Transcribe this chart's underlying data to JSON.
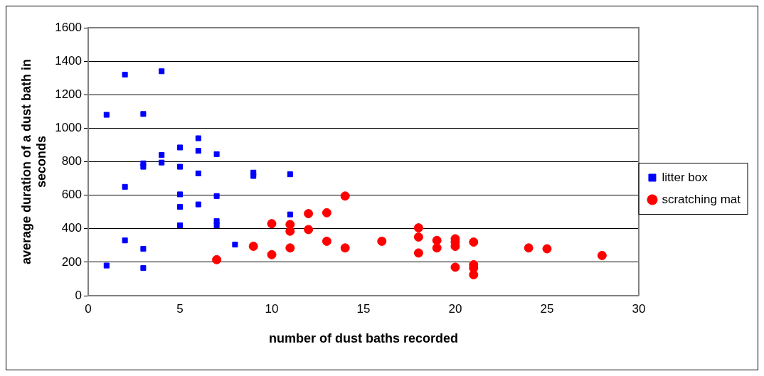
{
  "chart_data": {
    "type": "scatter",
    "xlabel": "number of dust baths recorded",
    "ylabel": "average duration of a dust bath in seconds",
    "xlim": [
      0,
      30
    ],
    "xticks": [
      0,
      5,
      10,
      15,
      20,
      25,
      30
    ],
    "ylim": [
      0,
      1600
    ],
    "yticks": [
      0,
      200,
      400,
      600,
      800,
      1000,
      1200,
      1400,
      1600
    ],
    "grid": "y",
    "legend": "right",
    "series": [
      {
        "name": "litter box",
        "color": "#0000ff",
        "marker": "square",
        "x": [
          1,
          1,
          2,
          2,
          2,
          3,
          3,
          3,
          3,
          3,
          4,
          4,
          4,
          5,
          5,
          5,
          5,
          5,
          6,
          6,
          6,
          6,
          7,
          7,
          7,
          7,
          8,
          9,
          9,
          11,
          11
        ],
        "values": [
          1080,
          180,
          1320,
          650,
          330,
          1085,
          790,
          770,
          280,
          165,
          1340,
          840,
          795,
          885,
          770,
          605,
          530,
          420,
          940,
          865,
          730,
          545,
          845,
          595,
          445,
          420,
          305,
          735,
          715,
          725,
          485
        ]
      },
      {
        "name": "scratching mat",
        "color": "#ff0000",
        "marker": "circle",
        "x": [
          7,
          9,
          10,
          10,
          11,
          11,
          11,
          12,
          12,
          13,
          13,
          14,
          14,
          16,
          18,
          18,
          18,
          19,
          19,
          20,
          20,
          20,
          20,
          21,
          21,
          21,
          21,
          24,
          25,
          28
        ],
        "values": [
          215,
          295,
          430,
          245,
          425,
          385,
          285,
          490,
          395,
          495,
          325,
          595,
          285,
          325,
          405,
          350,
          255,
          330,
          285,
          340,
          320,
          295,
          170,
          320,
          185,
          165,
          125,
          285,
          280,
          240
        ]
      }
    ]
  }
}
